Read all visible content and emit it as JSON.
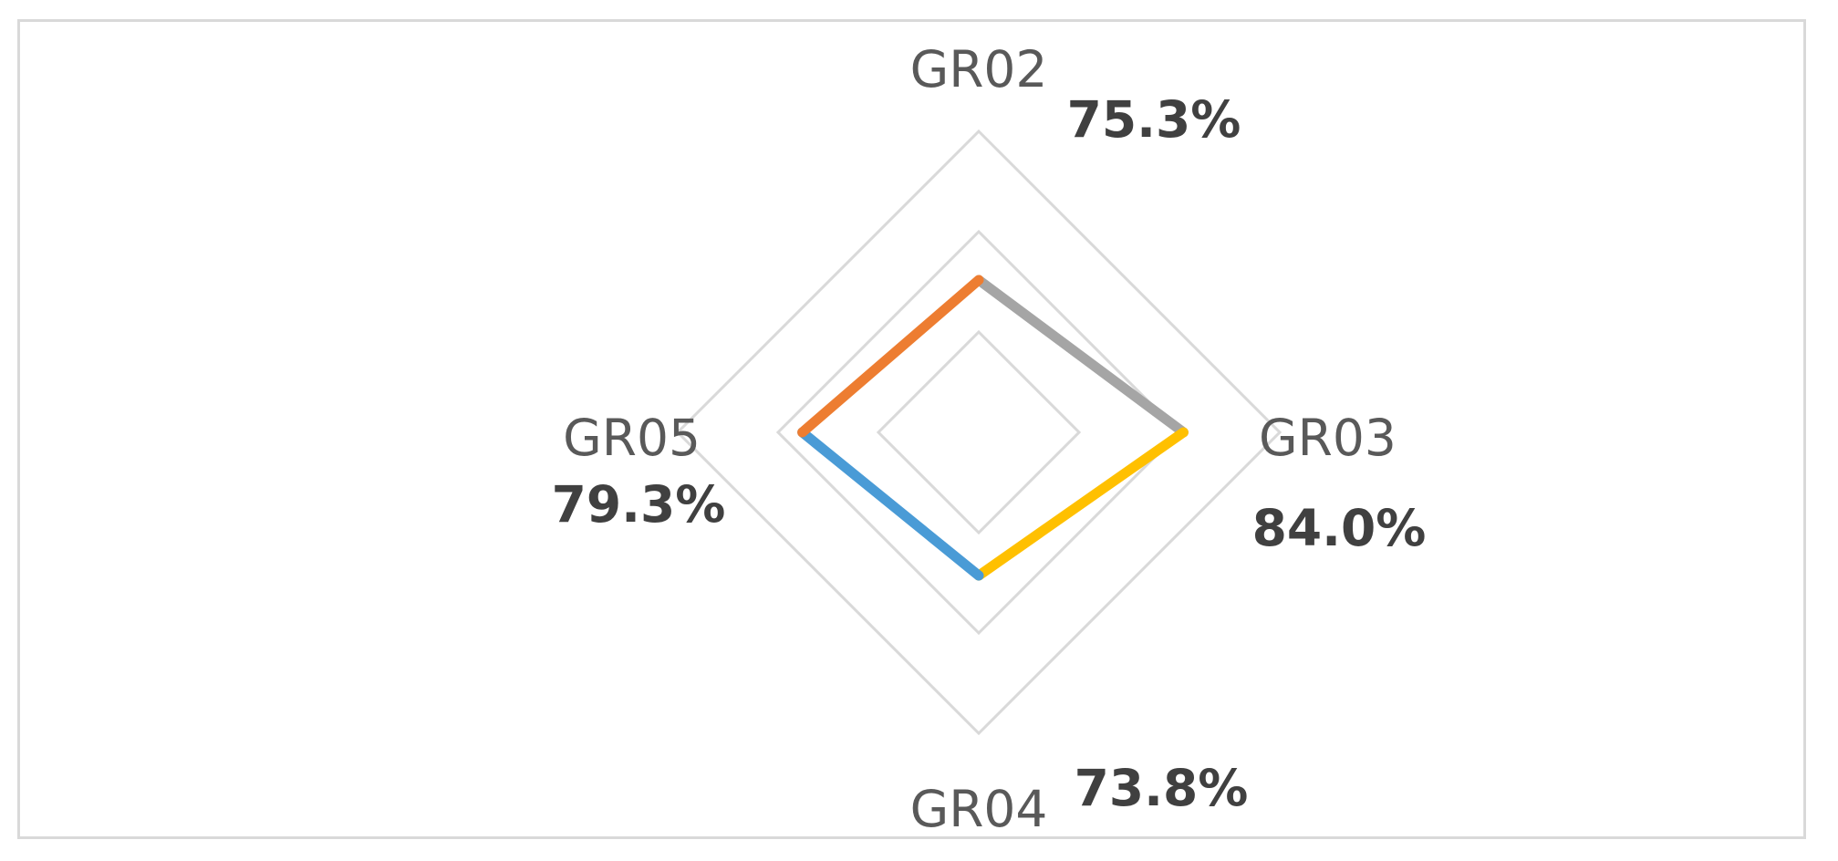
{
  "chart_data": {
    "type": "radar",
    "categories": [
      "GR02",
      "GR03",
      "GR04",
      "GR05"
    ],
    "values": [
      75.3,
      84.0,
      73.8,
      79.3
    ],
    "value_labels": [
      "75.3%",
      "84.0%",
      "73.8%",
      "79.3%"
    ],
    "segment_colors": [
      "#ED7D31",
      "#A5A5A5",
      "#FFC000",
      "#4A9BD6"
    ],
    "gridline_color": "#d9d9d9",
    "axis_range": [
      50,
      100
    ],
    "grid_rings": 3
  }
}
